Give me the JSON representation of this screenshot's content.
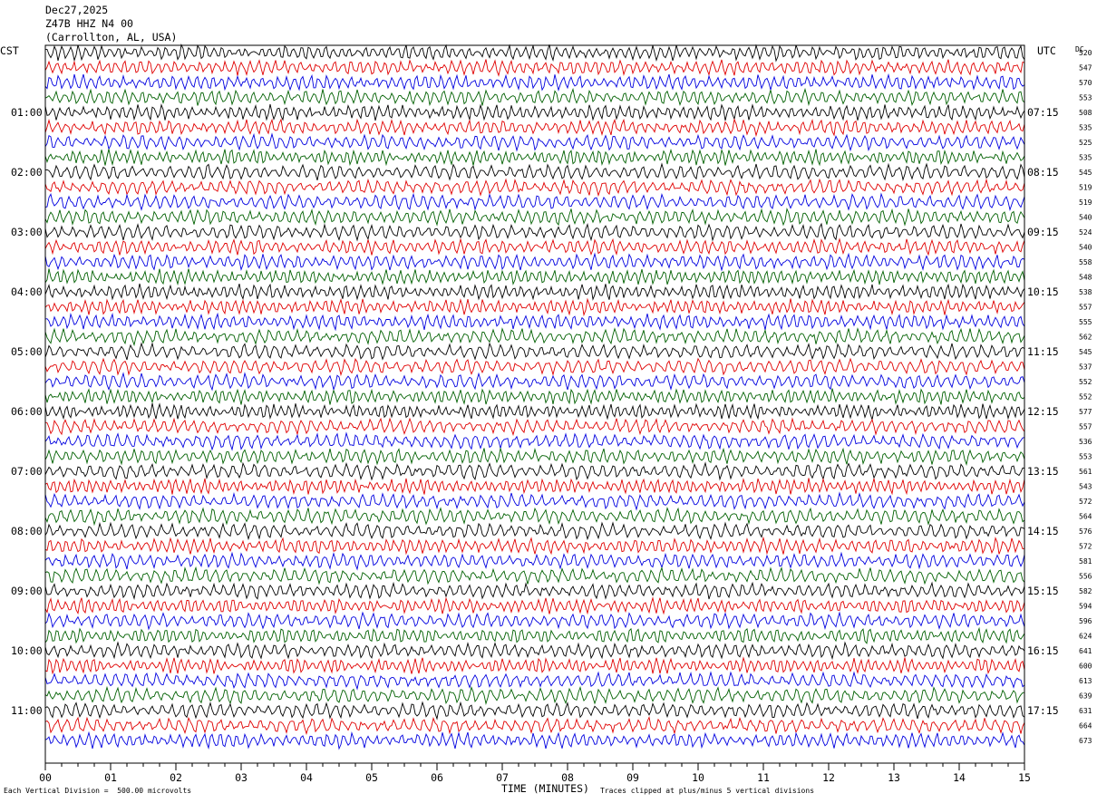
{
  "header": {
    "date": "Dec27,2025",
    "station": "Z47B HHZ N4 00",
    "location": "(Carrollton, AL, USA)"
  },
  "left_zone_label": "CST",
  "right_zone_label": "UTC",
  "dc_label": "DC",
  "left_hour_labels": [
    "01:00",
    "02:00",
    "03:00",
    "04:00",
    "05:00",
    "06:00",
    "07:00",
    "08:00",
    "09:00",
    "10:00",
    "11:00"
  ],
  "right_hour_labels": [
    "07:15",
    "08:15",
    "09:15",
    "10:15",
    "11:15",
    "12:15",
    "13:15",
    "14:15",
    "15:15",
    "16:15",
    "17:15"
  ],
  "dc_offsets": [
    520,
    547,
    570,
    553,
    508,
    535,
    525,
    535,
    545,
    519,
    519,
    540,
    524,
    540,
    558,
    548,
    538,
    557,
    555,
    562,
    545,
    537,
    552,
    552,
    577,
    557,
    536,
    553,
    561,
    543,
    572,
    564,
    576,
    572,
    581,
    556,
    582,
    594,
    596,
    624,
    641,
    600,
    613,
    639,
    631,
    664,
    673
  ],
  "footer": {
    "scale_note": "Each Vertical Division =  500.00 microvolts",
    "xlabel": "TIME (MINUTES)",
    "clip_note": "Traces clipped at plus/minus 5 vertical divisions"
  },
  "chart_data": {
    "type": "line",
    "title": "Dec27,2025 Z47B HHZ N4 00 (Carrollton, AL, USA)",
    "xlabel": "TIME (MINUTES)",
    "x_ticks": [
      "00",
      "01",
      "02",
      "03",
      "04",
      "05",
      "06",
      "07",
      "08",
      "09",
      "10",
      "11",
      "12",
      "13",
      "14",
      "15"
    ],
    "xlim": [
      0,
      15
    ],
    "trace_count": 47,
    "minutes_per_trace": 15,
    "trace_colors": [
      "#000000",
      "#e00000",
      "#0000e0",
      "#006000"
    ],
    "units_per_division": "500.00 microvolts",
    "clip_divisions": 5
  }
}
